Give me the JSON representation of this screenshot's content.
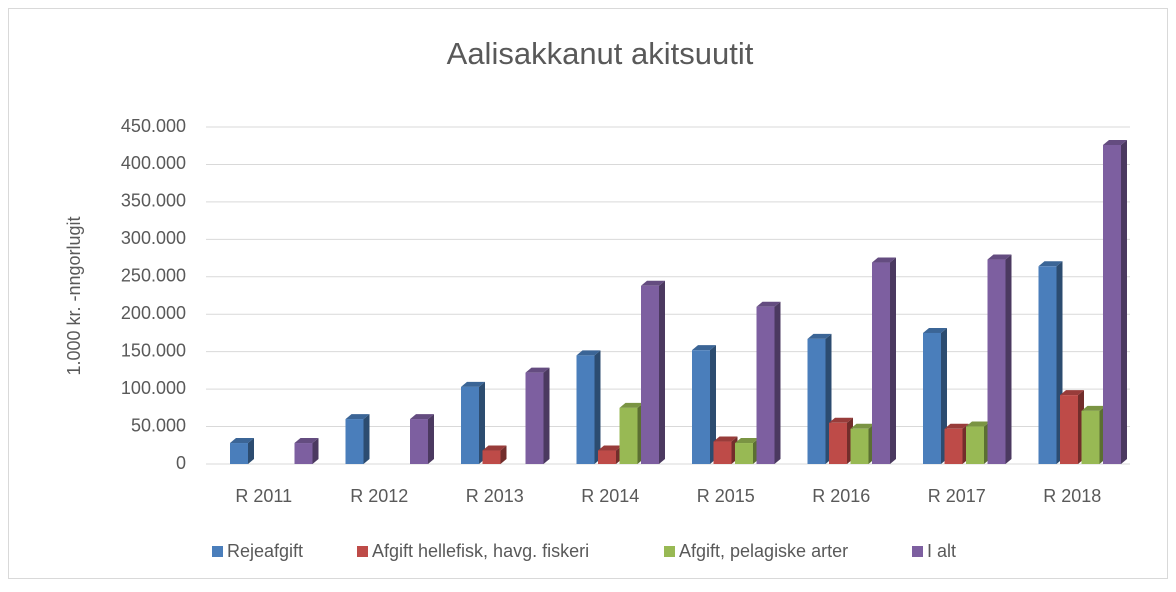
{
  "chart_data": {
    "type": "bar",
    "title": "Aalisakkanut akitsuutit",
    "y_label": "1.000 kr. -nngorlugit",
    "categories": [
      "R 2011",
      "R 2012",
      "R 2013",
      "R 2014",
      "R 2015",
      "R 2016",
      "R 2017",
      "R 2018"
    ],
    "series": [
      {
        "name": "Rejeafgift",
        "color": "#4a7ebb",
        "values": [
          28000,
          60000,
          103000,
          145000,
          152000,
          167000,
          175000,
          264000
        ]
      },
      {
        "name": "Afgift hellefisk, havg. fiskeri",
        "color": "#be4b48",
        "values": [
          0,
          0,
          18000,
          18000,
          30000,
          55000,
          47000,
          92000
        ]
      },
      {
        "name": "Afgift, pelagiske arter",
        "color": "#98b954",
        "values": [
          0,
          0,
          0,
          75000,
          28000,
          47000,
          50000,
          71000
        ]
      },
      {
        "name": "I alt",
        "color": "#7d5fa0",
        "values": [
          28000,
          60000,
          122000,
          238000,
          210000,
          269000,
          273000,
          426000
        ]
      }
    ],
    "ylim": [
      0,
      450000
    ],
    "yticks": [
      0,
      {
        "value": 50000,
        "label": "50.000"
      },
      {
        "value": 100000,
        "label": "100.000"
      },
      {
        "value": 150000,
        "label": "150.000"
      },
      {
        "value": 200000,
        "label": "200.000"
      },
      {
        "value": 250000,
        "label": "250.000"
      },
      {
        "value": 300000,
        "label": "300.000"
      },
      {
        "value": 350000,
        "label": "350.000"
      },
      {
        "value": 400000,
        "label": "400.000"
      },
      {
        "value": 450000,
        "label": "450.000"
      }
    ],
    "grid": true
  }
}
